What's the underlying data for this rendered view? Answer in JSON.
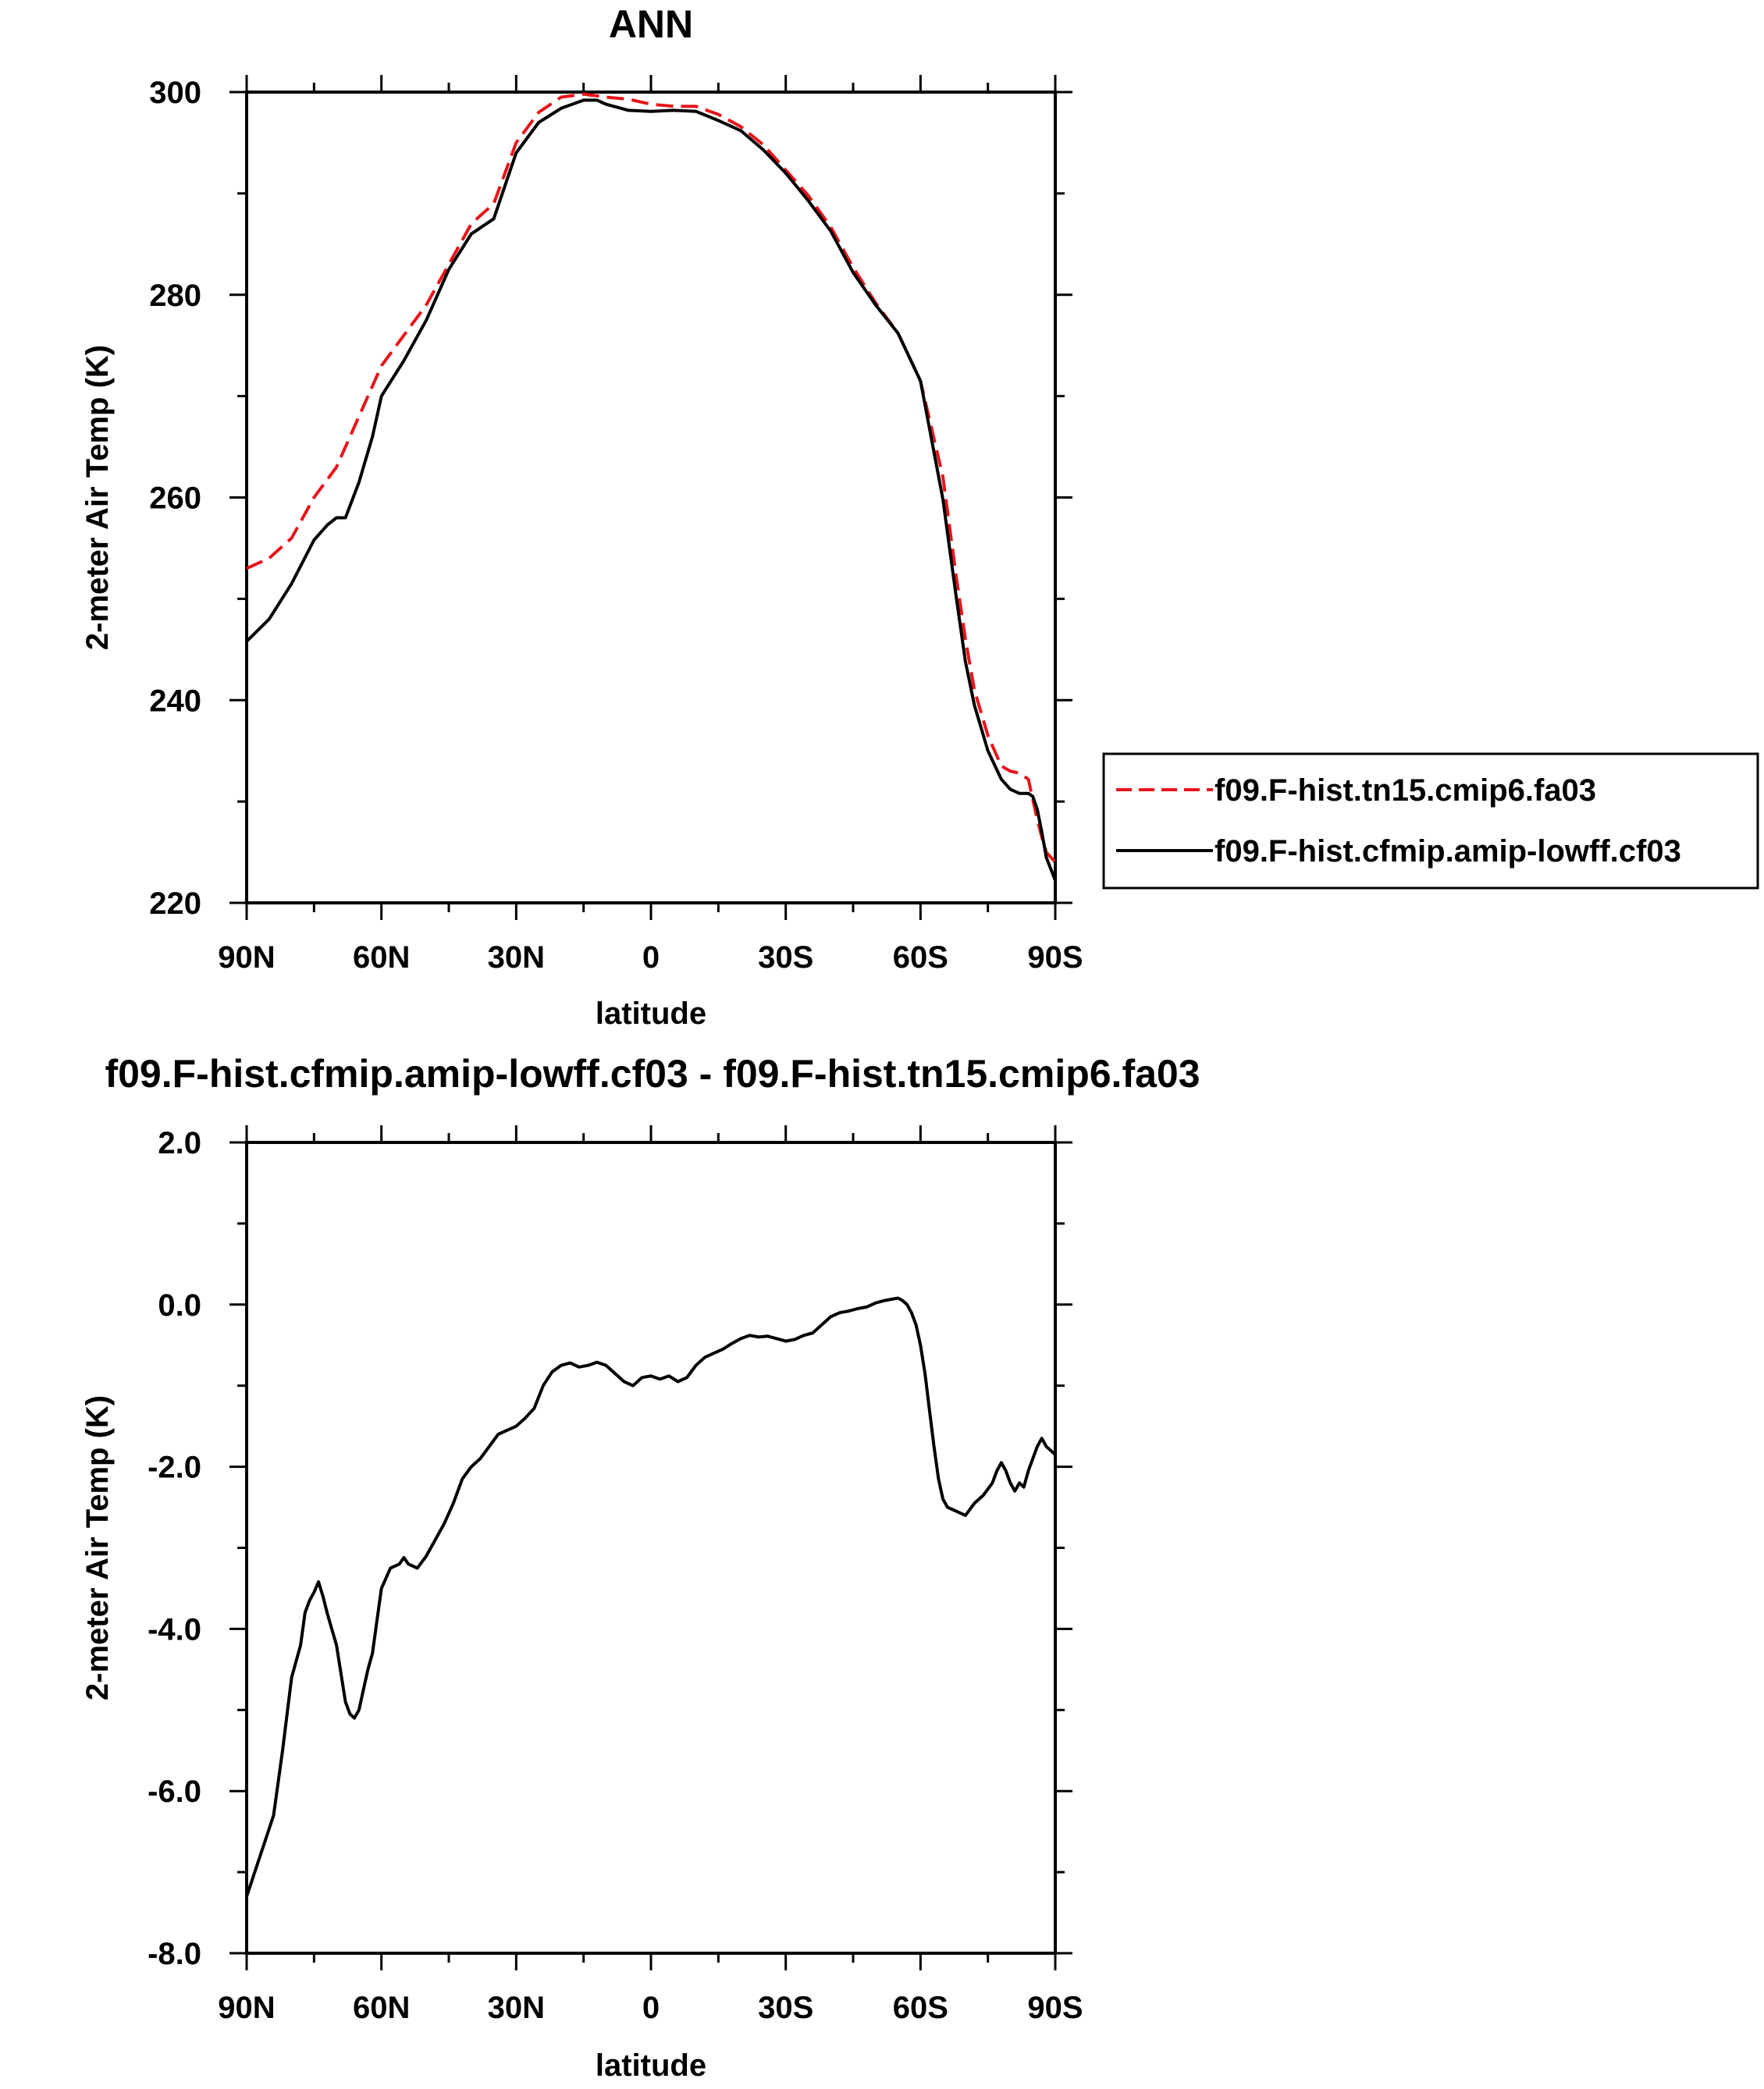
{
  "chart_data": [
    {
      "type": "line",
      "title": "ANN",
      "xlabel": "latitude",
      "ylabel": "2-meter Air Temp (K)",
      "xlim": [
        90,
        -90
      ],
      "ylim": [
        220,
        300
      ],
      "x_ticks": [
        {
          "value": 90,
          "label": "90N"
        },
        {
          "value": 60,
          "label": "60N"
        },
        {
          "value": 30,
          "label": "30N"
        },
        {
          "value": 0,
          "label": "0"
        },
        {
          "value": -30,
          "label": "30S"
        },
        {
          "value": -60,
          "label": "60S"
        },
        {
          "value": -90,
          "label": "90S"
        }
      ],
      "y_ticks": [
        {
          "value": 220,
          "label": "220"
        },
        {
          "value": 240,
          "label": "240"
        },
        {
          "value": 260,
          "label": "260"
        },
        {
          "value": 280,
          "label": "280"
        },
        {
          "value": 300,
          "label": "300"
        }
      ],
      "legend_position": "right",
      "series": [
        {
          "name": "f09.F-hist.tn15.cmip6.fa03",
          "color": "#e8141b",
          "dash": "dashed",
          "x": [
            90,
            85,
            80,
            75,
            70,
            65,
            60,
            55,
            50,
            45,
            40,
            35,
            30,
            25,
            20,
            15,
            10,
            5,
            0,
            -5,
            -10,
            -15,
            -20,
            -25,
            -30,
            -35,
            -40,
            -45,
            -50,
            -55,
            -60,
            -65,
            -68,
            -70,
            -72,
            -75,
            -78,
            -80,
            -82,
            -84,
            -85,
            -86,
            -87,
            -88,
            -90
          ],
          "y": [
            253,
            254,
            256,
            260,
            263,
            268,
            273,
            276,
            279,
            283,
            287,
            289,
            295,
            298,
            299.5,
            299.8,
            299.5,
            299.3,
            298.8,
            298.6,
            298.6,
            297.8,
            296.6,
            294.8,
            292.3,
            289.8,
            286.7,
            282.7,
            279.2,
            276.2,
            271.5,
            262,
            252,
            246,
            241,
            236.5,
            233.5,
            233,
            232.8,
            232.2,
            230.2,
            228.2,
            226.5,
            225,
            224
          ]
        },
        {
          "name": "f09.F-hist.cfmip.amip-lowff.cf03",
          "color": "#000000",
          "dash": "solid",
          "x": [
            90,
            85,
            80,
            75,
            72,
            70,
            68,
            65,
            62,
            60,
            55,
            50,
            45,
            40,
            35,
            30,
            25,
            20,
            15,
            12,
            10,
            5,
            0,
            -5,
            -10,
            -15,
            -20,
            -25,
            -30,
            -35,
            -40,
            -45,
            -50,
            -55,
            -60,
            -65,
            -68,
            -70,
            -72,
            -75,
            -78,
            -80,
            -82,
            -84,
            -85,
            -86,
            -87,
            -88,
            -90
          ],
          "y": [
            245.8,
            248,
            251.5,
            255.8,
            257.3,
            258,
            258,
            261.5,
            266,
            270,
            273.5,
            277.5,
            282.5,
            286,
            287.5,
            294,
            297,
            298.4,
            299.2,
            299.2,
            298.8,
            298.2,
            298.1,
            298.2,
            298.1,
            297.2,
            296.2,
            294.3,
            292,
            289.3,
            286.3,
            282.2,
            279,
            276.2,
            271.5,
            259.8,
            250,
            243.8,
            239.5,
            235,
            232.2,
            231.2,
            230.8,
            230.8,
            230.5,
            229.2,
            227,
            224.5,
            222.2
          ]
        }
      ]
    },
    {
      "type": "line",
      "title": "f09.F-hist.cfmip.amip-lowff.cf03 - f09.F-hist.tn15.cmip6.fa03",
      "xlabel": "latitude",
      "ylabel": "2-meter Air Temp (K)",
      "xlim": [
        90,
        -90
      ],
      "ylim": [
        -8,
        2
      ],
      "x_ticks": [
        {
          "value": 90,
          "label": "90N"
        },
        {
          "value": 60,
          "label": "60N"
        },
        {
          "value": 30,
          "label": "30N"
        },
        {
          "value": 0,
          "label": "0"
        },
        {
          "value": -30,
          "label": "30S"
        },
        {
          "value": -60,
          "label": "60S"
        },
        {
          "value": -90,
          "label": "90S"
        }
      ],
      "y_ticks": [
        {
          "value": -8,
          "label": "-8.0"
        },
        {
          "value": -6,
          "label": "-6.0"
        },
        {
          "value": -4,
          "label": "-4.0"
        },
        {
          "value": -2,
          "label": "-2.0"
        },
        {
          "value": 0,
          "label": "0.0"
        },
        {
          "value": 2,
          "label": "2.0"
        }
      ],
      "series": [
        {
          "color": "#000000",
          "dash": "solid",
          "x": [
            90,
            87,
            84,
            82,
            80,
            78,
            77,
            76,
            75,
            74,
            73,
            72,
            70,
            68,
            67,
            66,
            65,
            64,
            63,
            62,
            61,
            60,
            58,
            56,
            55,
            54,
            52,
            50,
            48,
            46,
            44,
            42,
            40,
            38,
            36,
            34,
            32,
            30,
            28,
            26,
            24,
            22,
            20,
            18,
            16,
            14,
            12,
            10,
            8,
            6,
            4,
            2,
            0,
            -2,
            -4,
            -6,
            -8,
            -10,
            -12,
            -14,
            -16,
            -18,
            -20,
            -22,
            -24,
            -26,
            -28,
            -30,
            -32,
            -34,
            -36,
            -38,
            -40,
            -42,
            -44,
            -46,
            -48,
            -50,
            -52,
            -54,
            -55,
            -56,
            -57,
            -58,
            -59,
            -60,
            -61,
            -62,
            -63,
            -64,
            -65,
            -66,
            -68,
            -70,
            -72,
            -74,
            -76,
            -77,
            -78,
            -79,
            -80,
            -81,
            -82,
            -83,
            -84,
            -85,
            -86,
            -87,
            -88,
            -89,
            -90
          ],
          "y": [
            -7.3,
            -6.8,
            -6.3,
            -5.5,
            -4.6,
            -4.2,
            -3.8,
            -3.65,
            -3.55,
            -3.42,
            -3.6,
            -3.82,
            -4.2,
            -4.9,
            -5.05,
            -5.1,
            -5.0,
            -4.75,
            -4.5,
            -4.3,
            -3.9,
            -3.5,
            -3.25,
            -3.2,
            -3.12,
            -3.2,
            -3.25,
            -3.1,
            -2.9,
            -2.7,
            -2.45,
            -2.15,
            -2.0,
            -1.9,
            -1.75,
            -1.6,
            -1.55,
            -1.5,
            -1.4,
            -1.28,
            -1.0,
            -0.83,
            -0.75,
            -0.72,
            -0.77,
            -0.75,
            -0.71,
            -0.75,
            -0.85,
            -0.95,
            -1.0,
            -0.9,
            -0.88,
            -0.92,
            -0.88,
            -0.95,
            -0.9,
            -0.75,
            -0.65,
            -0.6,
            -0.55,
            -0.48,
            -0.42,
            -0.38,
            -0.4,
            -0.39,
            -0.42,
            -0.45,
            -0.43,
            -0.38,
            -0.35,
            -0.25,
            -0.15,
            -0.1,
            -0.08,
            -0.05,
            -0.03,
            0.02,
            0.05,
            0.07,
            0.08,
            0.05,
            0.0,
            -0.1,
            -0.25,
            -0.5,
            -0.85,
            -1.3,
            -1.75,
            -2.15,
            -2.4,
            -2.5,
            -2.55,
            -2.6,
            -2.45,
            -2.35,
            -2.2,
            -2.05,
            -1.95,
            -2.05,
            -2.2,
            -2.3,
            -2.2,
            -2.25,
            -2.05,
            -1.9,
            -1.75,
            -1.65,
            -1.75,
            -1.8,
            -1.85
          ]
        }
      ]
    }
  ]
}
